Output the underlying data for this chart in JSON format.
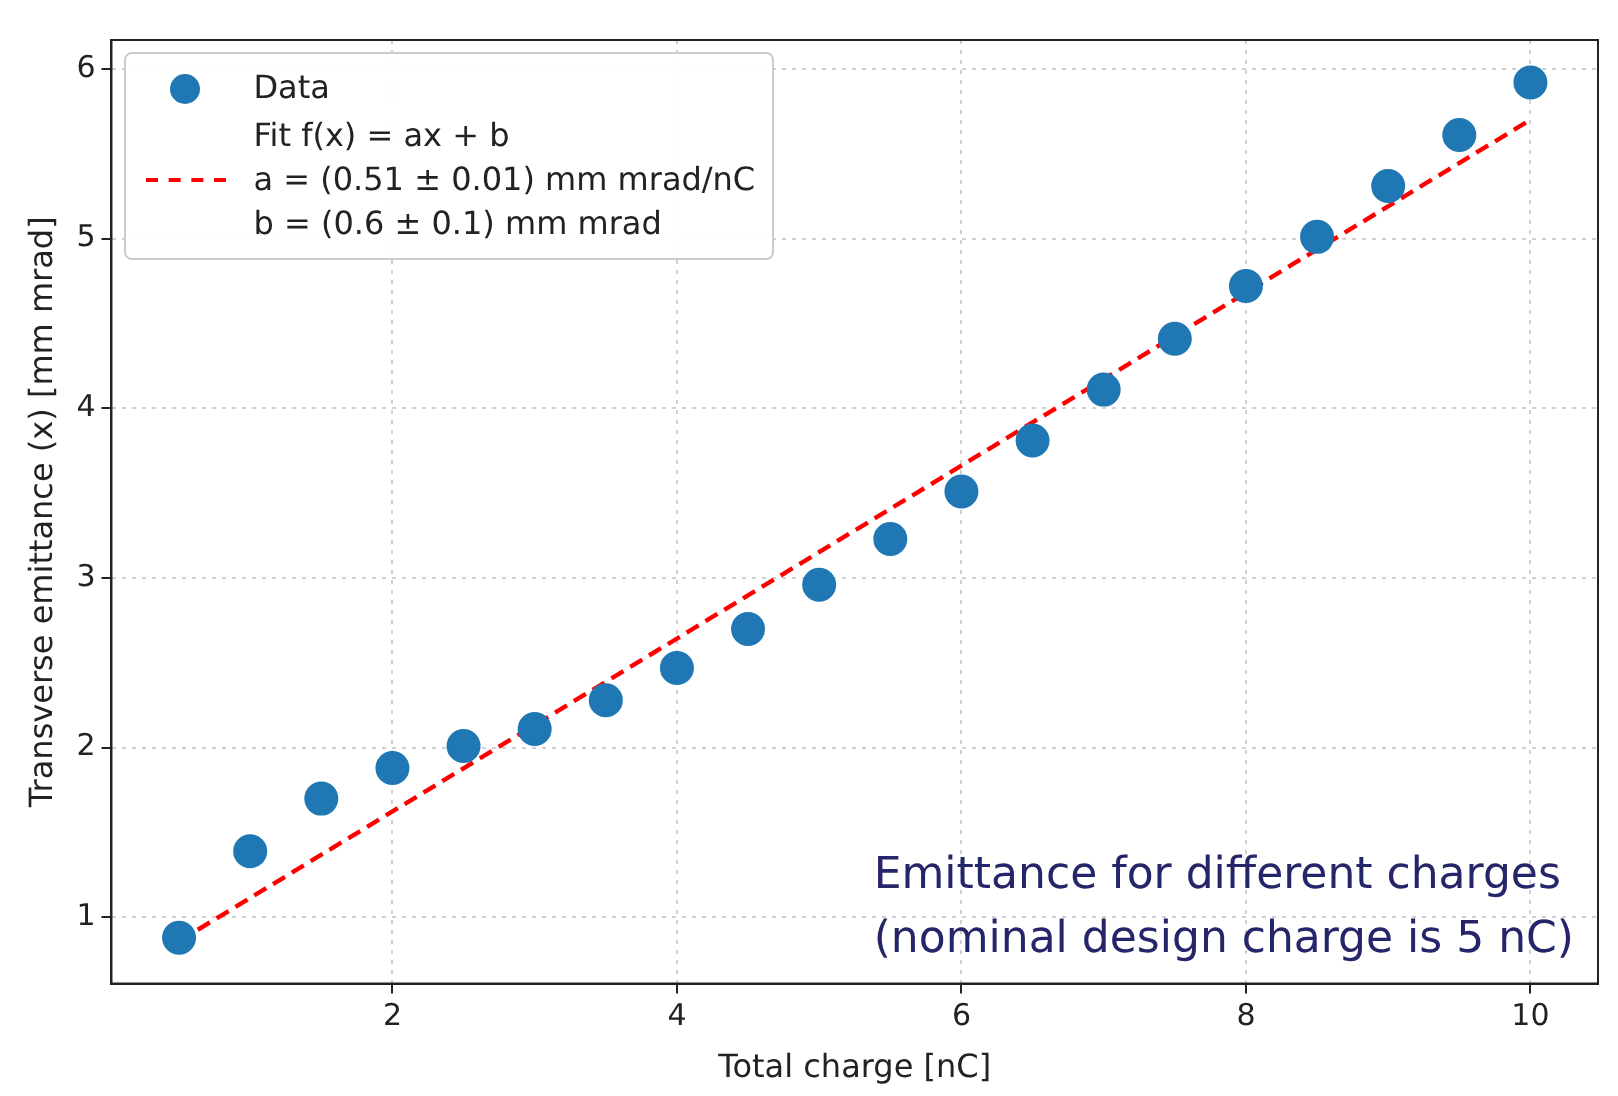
{
  "chart_data": {
    "type": "scatter",
    "xlabel": "Total charge [nC]",
    "ylabel": "Transverse emittance (x) [mm mrad]",
    "x": [
      0.5,
      1,
      1.5,
      2,
      2.5,
      3,
      3.5,
      4,
      4.5,
      5,
      5.5,
      6,
      6.5,
      7,
      7.5,
      8,
      8.5,
      9,
      9.5,
      10
    ],
    "series": [
      {
        "name": "Data",
        "color": "#1f77b4",
        "marker": "circle",
        "values": [
          0.88,
          1.39,
          1.7,
          1.88,
          2.01,
          2.11,
          2.28,
          2.47,
          2.7,
          2.96,
          3.23,
          3.51,
          3.81,
          4.11,
          4.41,
          4.72,
          5.01,
          5.31,
          5.61,
          5.92
        ]
      },
      {
        "name": "Fit f(x) = ax + b\na = (0.51 ± 0.01) mm mrad/nC\nb = (0.6 ± 0.1) mm mrad",
        "type": "line",
        "color": "#ff0000",
        "line_style": "dashed",
        "marker": "none",
        "x": [
          0.5,
          10
        ],
        "values": [
          0.86,
          5.7
        ]
      }
    ],
    "xlim": [
      0.025,
      10.475
    ],
    "ylim": [
      0.61,
      6.17
    ],
    "xticks": [
      2,
      4,
      6,
      8,
      10
    ],
    "yticks": [
      1,
      2,
      3,
      4,
      5,
      6
    ],
    "grid": true,
    "legend": "top left",
    "annotations": [
      "Emittance for different charges\n(nominal design charge is 5 nC)"
    ]
  }
}
